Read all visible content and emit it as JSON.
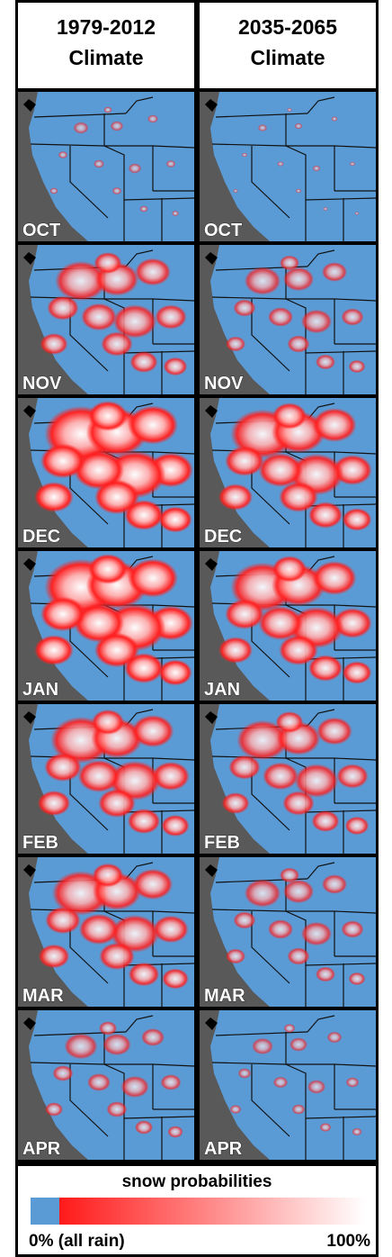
{
  "columns": [
    {
      "title": "1979-2012",
      "subtitle": "Climate"
    },
    {
      "title": "2035-2065",
      "subtitle": "Climate"
    }
  ],
  "months": [
    "OCT",
    "NOV",
    "DEC",
    "JAN",
    "FEB",
    "MAR",
    "APR"
  ],
  "legend": {
    "title": "snow probabilities",
    "min_label": "0% (all rain)",
    "max_label": "100%"
  }
}
